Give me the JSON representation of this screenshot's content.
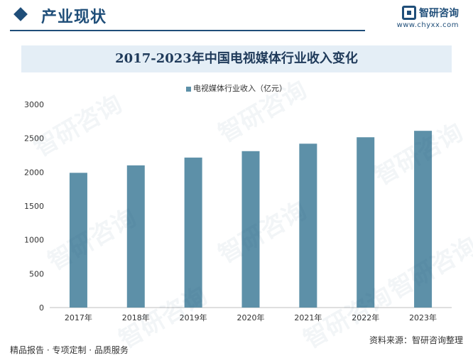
{
  "header": {
    "section_title": "产业现状",
    "brand_name": "智研咨询",
    "brand_url": "www.chyxx.com"
  },
  "chart_data": {
    "type": "bar",
    "title": "2017-2023年中国电视媒体行业收入变化",
    "categories": [
      "2017年",
      "2018年",
      "2019年",
      "2020年",
      "2021年",
      "2022年",
      "2023年"
    ],
    "series": [
      {
        "name": "电视媒体行业收入（亿元）",
        "values": [
          1990,
          2100,
          2215,
          2310,
          2420,
          2515,
          2610
        ]
      }
    ],
    "ylim": [
      0,
      3000
    ],
    "yticks": [
      0,
      500,
      1000,
      1500,
      2000,
      2500,
      3000
    ],
    "legend_position": "top-center",
    "grid": false,
    "bar_color": "#5d90a8"
  },
  "footer": {
    "left_text": "精品报告 · 专项定制 · 品质服务",
    "right_text": "资料来源：智研咨询整理"
  },
  "watermark_text": "智研咨询"
}
